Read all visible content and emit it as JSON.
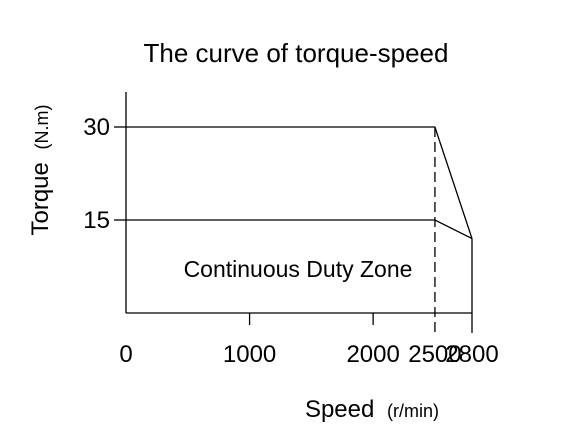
{
  "chart_data": {
    "type": "line",
    "title": "The curve of torque-speed",
    "xlabel": "Speed",
    "xunit": "(r/min)",
    "ylabel": "Torque",
    "yunit": "(N.m)",
    "xlim": [
      0,
      2800
    ],
    "ylim": [
      0,
      35
    ],
    "x_ticks": [
      0,
      1000,
      2000,
      2500,
      2800
    ],
    "y_ticks": [
      15,
      30
    ],
    "grid": false,
    "series": [
      {
        "points": [
          [
            0,
            30
          ],
          [
            2500,
            30
          ],
          [
            2800,
            12
          ]
        ]
      },
      {
        "points": [
          [
            0,
            15
          ],
          [
            2500,
            15
          ],
          [
            2800,
            12
          ]
        ]
      }
    ],
    "reference_lines": [
      {
        "x": 2500,
        "y_range": [
          0,
          30
        ],
        "style": "dashed"
      },
      {
        "x": 2800,
        "y_range": [
          0,
          12
        ],
        "style": "solid"
      }
    ],
    "zone_label": "Continuous Duty Zone"
  }
}
